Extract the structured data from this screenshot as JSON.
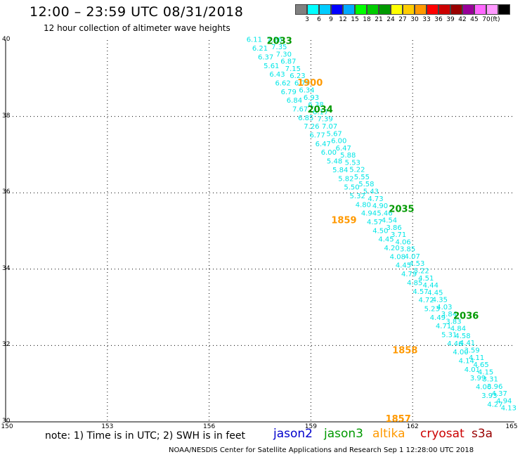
{
  "header": {
    "title": "12:00 – 23:59 UTC 08/31/2018",
    "subtitle": "12 hour collection of altimeter wave heights"
  },
  "legend": {
    "colors": [
      "#808080",
      "#00ffff",
      "#00ccff",
      "#0000ff",
      "#00aaff",
      "#00ff00",
      "#00cc00",
      "#009900",
      "#ffff00",
      "#ffcc00",
      "#ff9900",
      "#ff0000",
      "#cc0000",
      "#990000",
      "#990099",
      "#ff66ff",
      "#ff99ff",
      "#000000"
    ],
    "labels": [
      "3",
      "6",
      "9",
      "12",
      "15",
      "18",
      "21",
      "24",
      "27",
      "30",
      "33",
      "36",
      "39",
      "42",
      "45",
      "70"
    ],
    "unit": "(ft)"
  },
  "axes": {
    "y_labels": [
      "40",
      "38",
      "36",
      "34",
      "32",
      "30"
    ],
    "x_labels": [
      "150",
      "153",
      "156",
      "159",
      "162",
      "165"
    ]
  },
  "note": "note:  1) Time is in UTC;  2) SWH is in feet",
  "satellites": [
    {
      "name": "jason2",
      "color": "#0000cc"
    },
    {
      "name": "jason3",
      "color": "#009900"
    },
    {
      "name": "altika",
      "color": "#ff9900"
    },
    {
      "name": "cryosat",
      "color": "#cc0000"
    },
    {
      "name": "s3a",
      "color": "#990000"
    }
  ],
  "credit": "NOAA/NESDIS Center for Satellite Applications and Research     Sep  1 12:28:00 UTC 2018",
  "map_data": {
    "lon_range": [
      150,
      165
    ],
    "lat_range": [
      30,
      40
    ],
    "time_labels": [
      {
        "text": "2033",
        "lon": 157.7,
        "lat": 39.9,
        "sat": "jason3"
      },
      {
        "text": "1900",
        "lon": 158.6,
        "lat": 38.8,
        "sat": "altika"
      },
      {
        "text": "2034",
        "lon": 158.9,
        "lat": 38.1,
        "sat": "jason3"
      },
      {
        "text": "1859",
        "lon": 159.6,
        "lat": 35.2,
        "sat": "altika"
      },
      {
        "text": "2035",
        "lon": 161.3,
        "lat": 35.5,
        "sat": "jason3"
      },
      {
        "text": "2036",
        "lon": 163.2,
        "lat": 32.7,
        "sat": "jason3"
      },
      {
        "text": "1858",
        "lon": 161.4,
        "lat": 31.8,
        "sat": "altika"
      },
      {
        "text": "1857",
        "lon": 161.2,
        "lat": 30.0,
        "sat": "altika"
      }
    ],
    "tracks": [
      {
        "sat": "jason3",
        "start": [
          157.1,
          39.95
        ],
        "end": [
          164.2,
          30.4
        ],
        "values": [
          "6.11",
          "6.21",
          "6.37",
          "5.61",
          "6.43",
          "6.62",
          "6.79",
          "6.84",
          "7.67",
          "6.85",
          "7.26",
          "6.77",
          "6.47",
          "6.00",
          "5.48",
          "5.84",
          "5.82",
          "5.50",
          "5.32",
          "4.80",
          "4.94",
          "4.57",
          "4.50",
          "4.45",
          "4.20",
          "4.08",
          "4.45",
          "4.79",
          "4.85",
          "4.57",
          "4.72",
          "5.23",
          "4.49",
          "4.71",
          "5.31",
          "4.46",
          "4.00",
          "4.14",
          "4.01",
          "3.99",
          "4.06",
          "3.93",
          "4.27"
        ],
        "note": "left column of values"
      },
      {
        "sat": "jason3",
        "start": [
          157.7,
          39.95
        ],
        "end": [
          164.6,
          30.3
        ],
        "values": [
          "7.26",
          "7.35",
          "7.30",
          "6.87",
          "7.15",
          "6.23",
          "6.79",
          "6.34",
          "6.93",
          "6.38",
          "6.17",
          "7.39",
          "7.07",
          "5.67",
          "6.00",
          "6.47",
          "5.88",
          "5.53",
          "5.22",
          "5.55",
          "5.58",
          "5.43",
          "4.73",
          "4.90",
          "5.46",
          "4.54",
          "3.86",
          "3.71",
          "4.06",
          "3.85",
          "4.07",
          "4.53",
          "5.22",
          "4.51",
          "4.44",
          "4.45",
          "4.35",
          "4.03",
          "3.84",
          "3.83",
          "4.84",
          "4.58",
          "4.41",
          "3.59",
          "4.11",
          "4.65",
          "4.15",
          "3.31",
          "3.96",
          "4.37",
          "4.94",
          "4.13"
        ]
      }
    ]
  }
}
